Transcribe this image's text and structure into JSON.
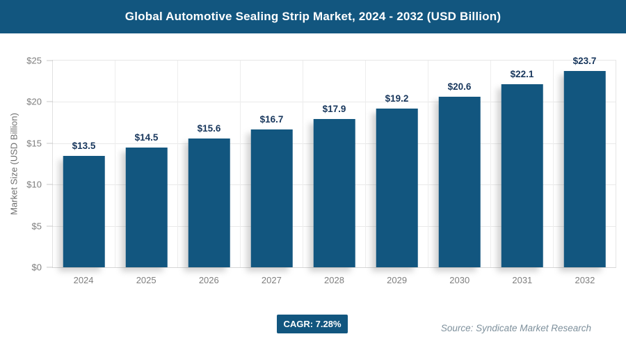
{
  "header": {
    "title": "Global Automotive Sealing Strip Market, 2024 - 2032 (USD Billion)"
  },
  "chart_data": {
    "type": "bar",
    "title": "Global Automotive Sealing Strip Market, 2024 - 2032 (USD Billion)",
    "categories": [
      "2024",
      "2025",
      "2026",
      "2027",
      "2028",
      "2029",
      "2030",
      "2031",
      "2032"
    ],
    "values": [
      13.5,
      14.5,
      15.6,
      16.7,
      17.9,
      19.2,
      20.6,
      22.1,
      23.7
    ],
    "value_labels": [
      "$13.5",
      "$14.5",
      "$15.6",
      "$16.7",
      "$17.9",
      "$19.2",
      "$20.6",
      "$22.1",
      "$23.7"
    ],
    "xlabel": "",
    "ylabel": "Market Size (USD Billion)",
    "ylim": [
      0,
      25
    ],
    "yticks": [
      0,
      5,
      10,
      15,
      20,
      25
    ],
    "ytick_labels_top_to_bottom": [
      "$25",
      "$20",
      "$15",
      "$10",
      "$5",
      "$0"
    ],
    "grid": true,
    "legend": "none",
    "bar_color": "#12567F",
    "value_label_color": "#17365C"
  },
  "footer": {
    "cagr_label": "CAGR: 7.28%",
    "source": "Source: Syndicate Market Research"
  },
  "colors": {
    "accent": "#12567F",
    "axis_text": "#7e7e7e",
    "grid": "#e9e9e9",
    "source_text": "#7E909C"
  }
}
